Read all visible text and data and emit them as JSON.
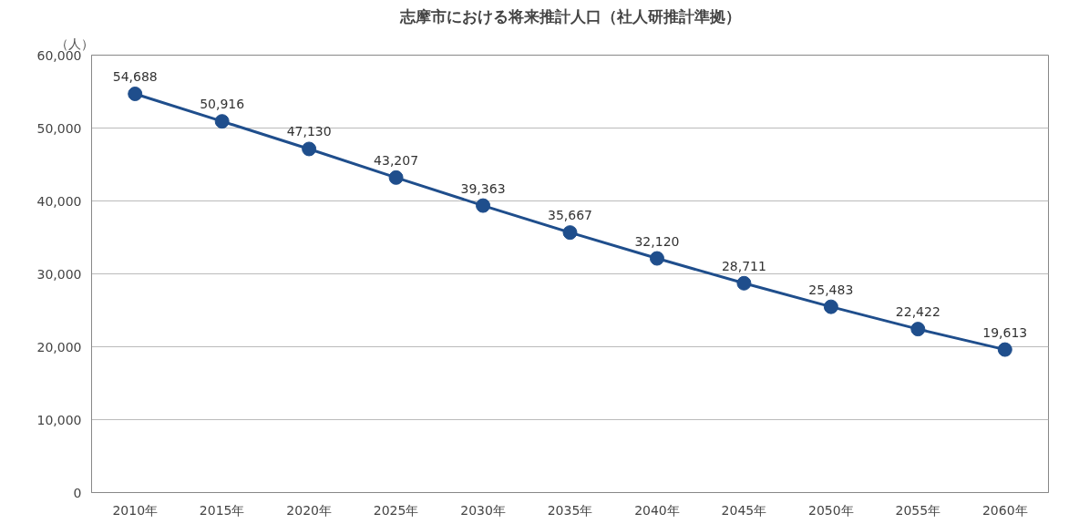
{
  "chart_data": {
    "type": "line",
    "title": "志摩市における将来推計人口（社人研推計準拠）",
    "ylabel": "（人）",
    "categories": [
      "2010年",
      "2015年",
      "2020年",
      "2025年",
      "2030年",
      "2035年",
      "2040年",
      "2045年",
      "2050年",
      "2055年",
      "2060年"
    ],
    "series": [
      {
        "color": "#1f4e8c",
        "values": [
          54688,
          50916,
          47130,
          43207,
          39363,
          35667,
          32120,
          28711,
          25483,
          22422,
          19613
        ]
      }
    ],
    "ylim": [
      0,
      60000
    ],
    "yticks": [
      {
        "value": 0,
        "label": "0"
      },
      {
        "value": 10000,
        "label": "10,000"
      },
      {
        "value": 20000,
        "label": "20,000"
      },
      {
        "value": 30000,
        "label": "30,000"
      },
      {
        "value": 40000,
        "label": "40,000"
      },
      {
        "value": 50000,
        "label": "50,000"
      },
      {
        "value": 60000,
        "label": "60,000"
      }
    ],
    "value_labels": [
      "54,688",
      "50,916",
      "47,130",
      "43,207",
      "39,363",
      "35,667",
      "32,120",
      "28,711",
      "25,483",
      "22,422",
      "19,613"
    ],
    "grid": "y",
    "marker": "circle",
    "line_style": "solid"
  }
}
